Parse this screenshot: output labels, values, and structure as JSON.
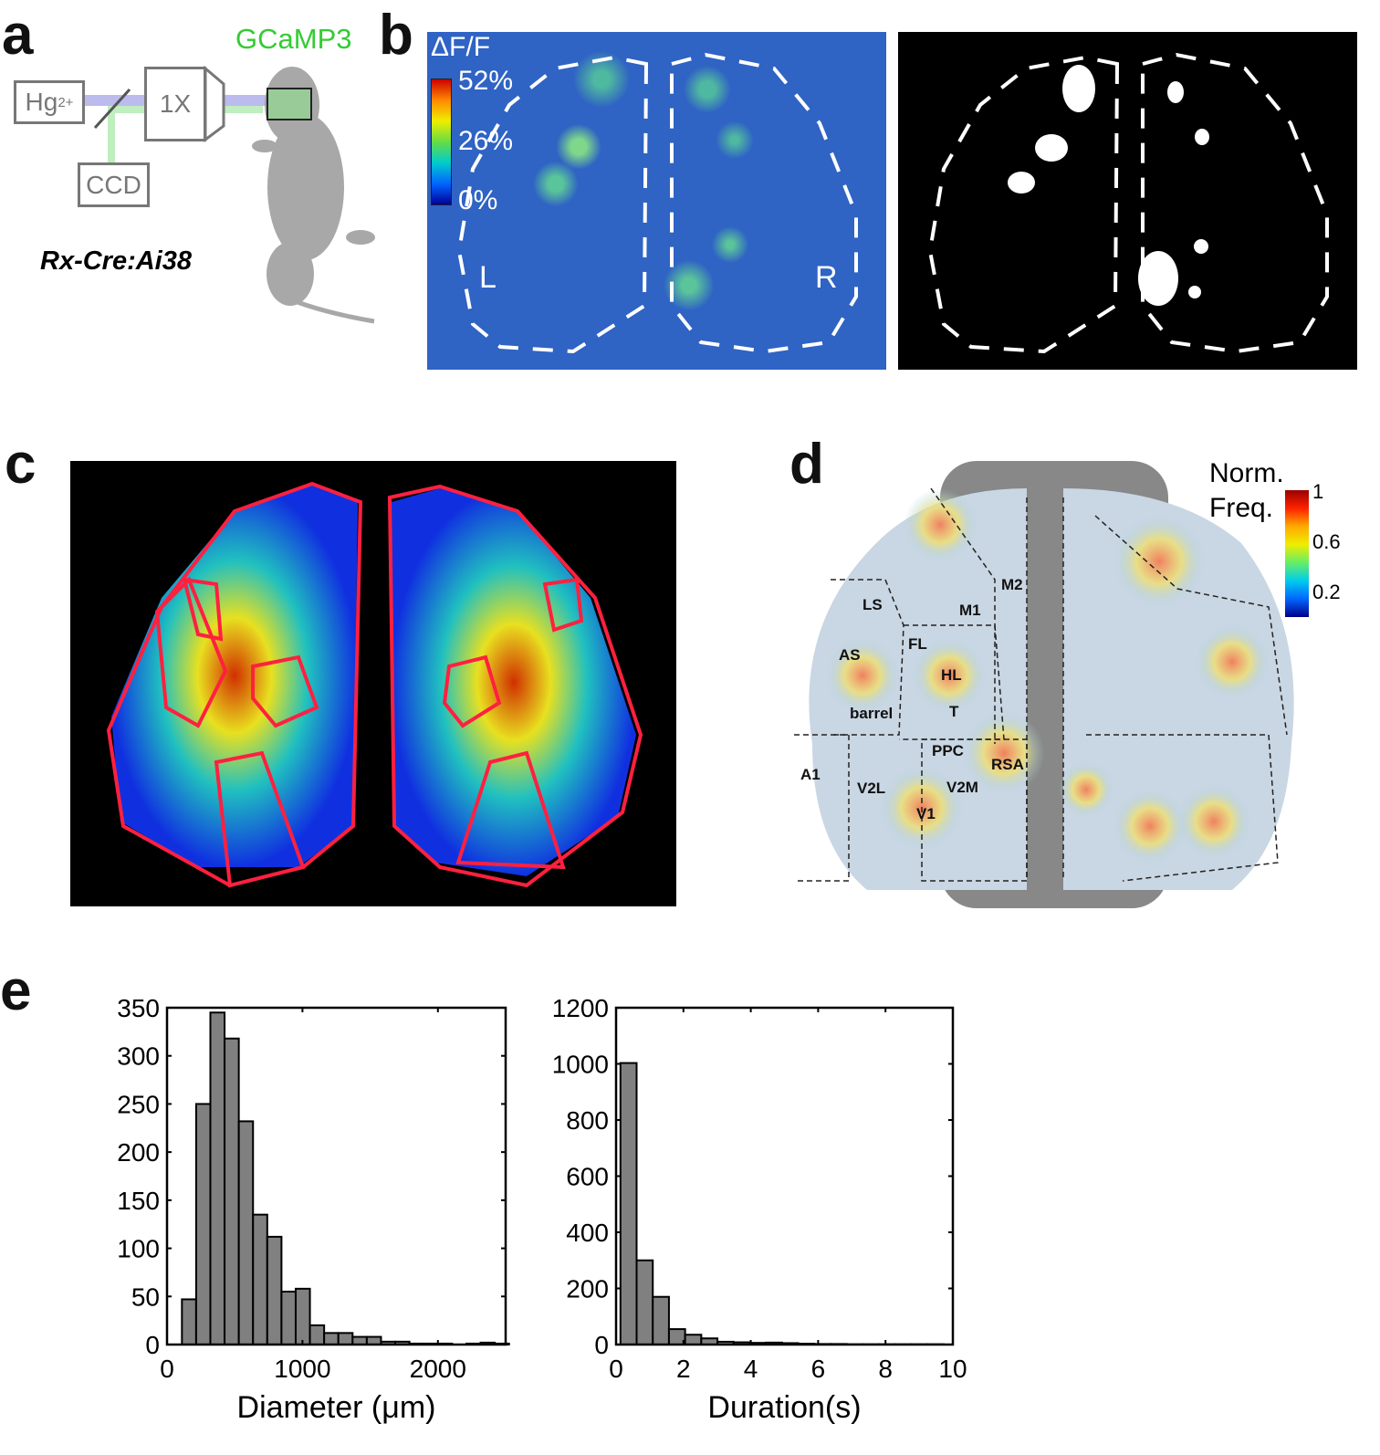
{
  "panels": {
    "a": {
      "letter": "a",
      "light_source": "Hg",
      "light_source_sup": "2+",
      "objective": "1X",
      "camera": "CCD",
      "indicator": "GCaMP3",
      "indicator_color": "#33cc33",
      "genotype": "Rx-Cre:Ai38"
    },
    "b": {
      "letter": "b",
      "colorbar_title": "ΔF/F",
      "colorbar_ticks": [
        "52%",
        "26%",
        "0%"
      ],
      "left_label": "L",
      "right_label": "R"
    },
    "c": {
      "letter": "c"
    },
    "d": {
      "letter": "d",
      "colorbar_title_1": "Norm.",
      "colorbar_title_2": "Freq.",
      "colorbar_ticks": [
        "1",
        "0.6",
        "0.2"
      ],
      "regions": [
        "M2",
        "LS",
        "M1",
        "FL",
        "AS",
        "HL",
        "barrel",
        "T",
        "PPC",
        "RSA",
        "A1",
        "V2L",
        "V2M",
        "V1"
      ]
    },
    "e": {
      "letter": "e"
    }
  },
  "chart_data": [
    {
      "type": "bar",
      "xlabel": "Diameter (μm)",
      "ylabel": "",
      "xlim": [
        0,
        2500
      ],
      "ylim": [
        0,
        350
      ],
      "xticks": [
        0,
        1000,
        2000
      ],
      "yticks": [
        0,
        50,
        100,
        150,
        200,
        250,
        300,
        350
      ],
      "bin_width": 105,
      "bin_start": 110,
      "values": [
        47,
        250,
        345,
        318,
        232,
        135,
        112,
        55,
        58,
        20,
        12,
        12,
        8,
        8,
        3,
        3,
        1,
        1,
        1,
        0,
        1,
        2,
        1
      ],
      "bar_color": "#808080"
    },
    {
      "type": "bar",
      "xlabel": "Duration(s)",
      "ylabel": "",
      "xlim": [
        0,
        10
      ],
      "ylim": [
        0,
        1200
      ],
      "xticks": [
        0,
        2,
        4,
        6,
        8,
        10
      ],
      "yticks": [
        0,
        200,
        400,
        600,
        800,
        1000,
        1200
      ],
      "bin_width": 0.48,
      "bin_start": 0.13,
      "values": [
        1003,
        300,
        170,
        55,
        35,
        22,
        10,
        8,
        6,
        7,
        5,
        3,
        2,
        2,
        1,
        1,
        1,
        1,
        1,
        1
      ],
      "bar_color": "#808080"
    }
  ]
}
